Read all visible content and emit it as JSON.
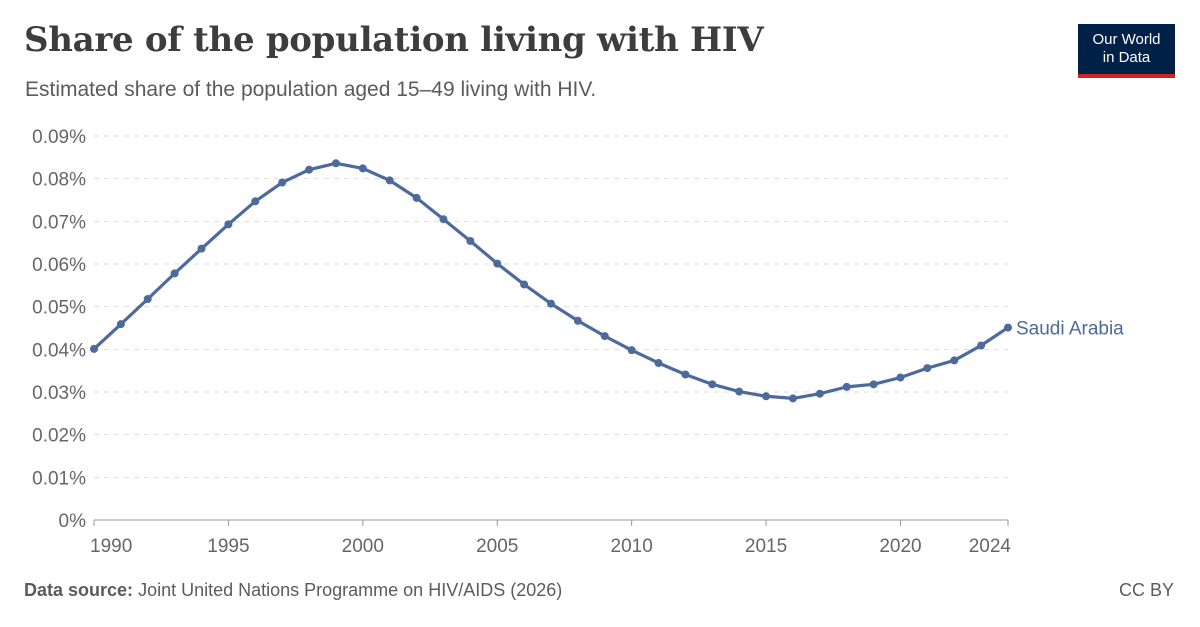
{
  "header": {
    "title": "Share of the population living with HIV",
    "subtitle": "Estimated share of the population aged 15–49 living with HIV."
  },
  "logo": {
    "line1": "Our World",
    "line2": "in Data"
  },
  "footer": {
    "source_label": "Data source:",
    "source_text": "Joint United Nations Programme on HIV/AIDS (2026)",
    "license": "CC BY"
  },
  "colors": {
    "series": "#4c6a9c",
    "grid": "#dddddd",
    "axis": "#999999"
  },
  "chart_data": {
    "type": "line",
    "title": "Share of the population living with HIV",
    "subtitle": "Estimated share of the population aged 15–49 living with HIV.",
    "xlabel": "",
    "ylabel": "",
    "xlim": [
      1990,
      2024
    ],
    "ylim": [
      0,
      0.09
    ],
    "y_unit": "%",
    "y_ticks": [
      "0%",
      "0.01%",
      "0.02%",
      "0.03%",
      "0.04%",
      "0.05%",
      "0.06%",
      "0.07%",
      "0.08%",
      "0.09%"
    ],
    "x_ticks": [
      "1990",
      "1995",
      "2000",
      "2005",
      "2010",
      "2015",
      "2020",
      "2024"
    ],
    "grid": true,
    "legend": "inline-end",
    "series": [
      {
        "name": "Saudi Arabia",
        "x": [
          1990,
          1991,
          1992,
          1993,
          1994,
          1995,
          1996,
          1997,
          1998,
          1999,
          2000,
          2001,
          2002,
          2003,
          2004,
          2005,
          2006,
          2007,
          2008,
          2009,
          2010,
          2011,
          2012,
          2013,
          2014,
          2015,
          2016,
          2017,
          2018,
          2019,
          2020,
          2021,
          2022,
          2023,
          2024
        ],
        "y": [
          0.0401,
          0.0459,
          0.0518,
          0.0578,
          0.0636,
          0.0693,
          0.0747,
          0.0791,
          0.0821,
          0.0836,
          0.0824,
          0.0796,
          0.0755,
          0.0705,
          0.0654,
          0.0601,
          0.0552,
          0.0507,
          0.0467,
          0.0431,
          0.0398,
          0.0368,
          0.0341,
          0.0318,
          0.0301,
          0.029,
          0.0285,
          0.0296,
          0.0312,
          0.0318,
          0.0334,
          0.0356,
          0.0374,
          0.0409,
          0.0451
        ]
      }
    ]
  }
}
